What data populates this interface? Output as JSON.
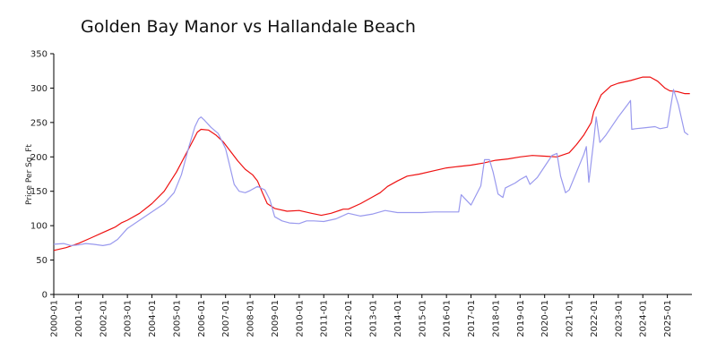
{
  "chart_data": {
    "type": "line",
    "title": "Golden Bay Manor vs Hallandale Beach",
    "xlabel": "",
    "ylabel": "Price Per Sq. Ft",
    "ylim": [
      0,
      350
    ],
    "yticks": [
      0,
      50,
      100,
      150,
      200,
      250,
      300,
      350
    ],
    "xlim": [
      2000.0,
      2025.917
    ],
    "xticks": [
      "2000-01",
      "2001-01",
      "2002-01",
      "2003-01",
      "2004-01",
      "2005-01",
      "2006-01",
      "2007-01",
      "2008-01",
      "2009-01",
      "2010-01",
      "2011-01",
      "2012-01",
      "2013-01",
      "2014-01",
      "2015-01",
      "2016-01",
      "2017-01",
      "2018-01",
      "2019-01",
      "2020-01",
      "2021-01",
      "2022-01",
      "2023-01",
      "2024-01",
      "2025-01"
    ],
    "grid": false,
    "legend": "none",
    "series": [
      {
        "color": "#ee1111",
        "points": [
          [
            2000.0,
            64
          ],
          [
            2000.5,
            68
          ],
          [
            2001.0,
            74
          ],
          [
            2001.5,
            82
          ],
          [
            2002.0,
            90
          ],
          [
            2002.5,
            98
          ],
          [
            2002.75,
            104
          ],
          [
            2003.0,
            108
          ],
          [
            2003.5,
            118
          ],
          [
            2004.0,
            132
          ],
          [
            2004.5,
            150
          ],
          [
            2005.0,
            178
          ],
          [
            2005.5,
            212
          ],
          [
            2005.85,
            236
          ],
          [
            2006.0,
            240
          ],
          [
            2006.3,
            239
          ],
          [
            2006.6,
            232
          ],
          [
            2006.9,
            222
          ],
          [
            2007.2,
            208
          ],
          [
            2007.5,
            194
          ],
          [
            2007.8,
            182
          ],
          [
            2008.1,
            174
          ],
          [
            2008.3,
            165
          ],
          [
            2008.5,
            148
          ],
          [
            2008.7,
            132
          ],
          [
            2009.0,
            125
          ],
          [
            2009.5,
            121
          ],
          [
            2010.0,
            122
          ],
          [
            2010.5,
            118
          ],
          [
            2010.9,
            115
          ],
          [
            2011.3,
            118
          ],
          [
            2011.8,
            124
          ],
          [
            2012.0,
            124
          ],
          [
            2012.5,
            132
          ],
          [
            2013.0,
            142
          ],
          [
            2013.3,
            148
          ],
          [
            2013.6,
            157
          ],
          [
            2014.0,
            165
          ],
          [
            2014.4,
            172
          ],
          [
            2014.9,
            175
          ],
          [
            2015.5,
            180
          ],
          [
            2016.0,
            184
          ],
          [
            2016.5,
            186
          ],
          [
            2017.0,
            188
          ],
          [
            2017.5,
            191
          ],
          [
            2018.0,
            195
          ],
          [
            2018.5,
            197
          ],
          [
            2019.0,
            200
          ],
          [
            2019.5,
            202
          ],
          [
            2020.0,
            201
          ],
          [
            2020.5,
            200
          ],
          [
            2021.0,
            206
          ],
          [
            2021.3,
            218
          ],
          [
            2021.6,
            232
          ],
          [
            2021.9,
            250
          ],
          [
            2022.0,
            266
          ],
          [
            2022.3,
            290
          ],
          [
            2022.7,
            303
          ],
          [
            2023.0,
            307
          ],
          [
            2023.5,
            311
          ],
          [
            2024.0,
            316
          ],
          [
            2024.3,
            316
          ],
          [
            2024.6,
            310
          ],
          [
            2024.9,
            300
          ],
          [
            2025.1,
            296
          ],
          [
            2025.4,
            295
          ],
          [
            2025.7,
            292
          ],
          [
            2025.917,
            292
          ]
        ]
      },
      {
        "color": "#9999ee",
        "points": [
          [
            2000.0,
            73
          ],
          [
            2000.4,
            74
          ],
          [
            2000.7,
            71
          ],
          [
            2001.0,
            72
          ],
          [
            2001.3,
            74
          ],
          [
            2001.6,
            73
          ],
          [
            2002.0,
            71
          ],
          [
            2002.3,
            73
          ],
          [
            2002.6,
            80
          ],
          [
            2003.0,
            96
          ],
          [
            2003.5,
            108
          ],
          [
            2004.0,
            120
          ],
          [
            2004.5,
            132
          ],
          [
            2004.9,
            148
          ],
          [
            2005.2,
            174
          ],
          [
            2005.5,
            214
          ],
          [
            2005.75,
            244
          ],
          [
            2005.9,
            255
          ],
          [
            2006.0,
            258
          ],
          [
            2006.15,
            253
          ],
          [
            2006.4,
            243
          ],
          [
            2006.7,
            234
          ],
          [
            2007.0,
            212
          ],
          [
            2007.15,
            190
          ],
          [
            2007.35,
            160
          ],
          [
            2007.55,
            150
          ],
          [
            2007.8,
            148
          ],
          [
            2008.0,
            151
          ],
          [
            2008.3,
            157
          ],
          [
            2008.6,
            152
          ],
          [
            2008.8,
            138
          ],
          [
            2009.0,
            113
          ],
          [
            2009.3,
            107
          ],
          [
            2009.6,
            104
          ],
          [
            2010.0,
            103
          ],
          [
            2010.3,
            107
          ],
          [
            2010.6,
            107
          ],
          [
            2011.0,
            106
          ],
          [
            2011.5,
            110
          ],
          [
            2012.0,
            118
          ],
          [
            2012.5,
            114
          ],
          [
            2013.0,
            117
          ],
          [
            2013.5,
            122
          ],
          [
            2014.0,
            119
          ],
          [
            2015.0,
            119
          ],
          [
            2015.5,
            120
          ],
          [
            2016.5,
            120
          ],
          [
            2016.6,
            145
          ],
          [
            2017.0,
            130
          ],
          [
            2017.4,
            158
          ],
          [
            2017.55,
            196
          ],
          [
            2017.75,
            196
          ],
          [
            2017.9,
            178
          ],
          [
            2018.1,
            146
          ],
          [
            2018.3,
            141
          ],
          [
            2018.4,
            155
          ],
          [
            2018.8,
            162
          ],
          [
            2019.0,
            167
          ],
          [
            2019.25,
            172
          ],
          [
            2019.4,
            160
          ],
          [
            2019.7,
            170
          ],
          [
            2020.0,
            186
          ],
          [
            2020.3,
            202
          ],
          [
            2020.5,
            205
          ],
          [
            2020.65,
            172
          ],
          [
            2020.85,
            148
          ],
          [
            2021.0,
            152
          ],
          [
            2021.3,
            178
          ],
          [
            2021.6,
            204
          ],
          [
            2021.7,
            215
          ],
          [
            2021.8,
            163
          ],
          [
            2022.0,
            224
          ],
          [
            2022.1,
            258
          ],
          [
            2022.25,
            221
          ],
          [
            2022.5,
            232
          ],
          [
            2023.0,
            258
          ],
          [
            2023.4,
            277
          ],
          [
            2023.5,
            282
          ],
          [
            2023.55,
            240
          ],
          [
            2023.7,
            241
          ],
          [
            2024.0,
            242
          ],
          [
            2024.5,
            244
          ],
          [
            2024.7,
            241
          ],
          [
            2025.0,
            243
          ],
          [
            2025.15,
            276
          ],
          [
            2025.25,
            298
          ],
          [
            2025.45,
            276
          ],
          [
            2025.7,
            236
          ],
          [
            2025.85,
            232
          ]
        ]
      }
    ]
  }
}
